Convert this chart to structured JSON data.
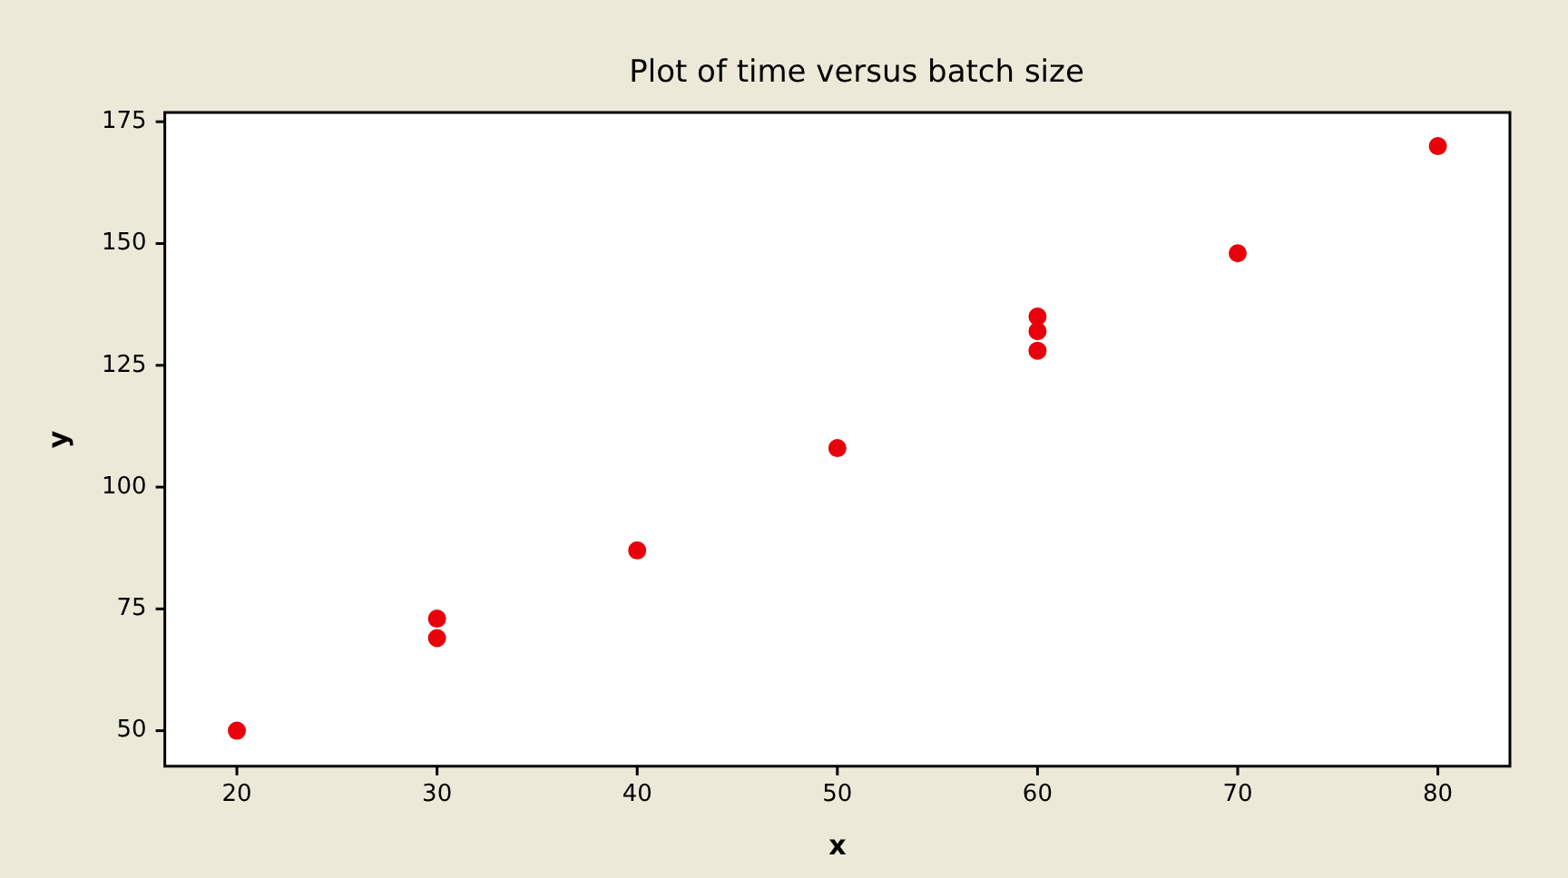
{
  "chart_data": {
    "type": "scatter",
    "title": "Plot of time versus batch size",
    "xlabel": "x",
    "ylabel": "y",
    "x": [
      20,
      30,
      30,
      40,
      50,
      60,
      60,
      60,
      70,
      80
    ],
    "values": [
      50,
      73,
      69,
      87,
      108,
      135,
      132,
      128,
      148,
      170
    ],
    "color": "#e8000b",
    "marker": "circle",
    "xlim": [
      16.4,
      83.6
    ],
    "xticks": [
      20,
      30,
      40,
      50,
      60,
      70,
      80
    ],
    "ylim": [
      42.7,
      176.9
    ],
    "yticks": [
      50,
      75,
      100,
      125,
      150,
      175
    ],
    "grid": false,
    "legend": false
  }
}
